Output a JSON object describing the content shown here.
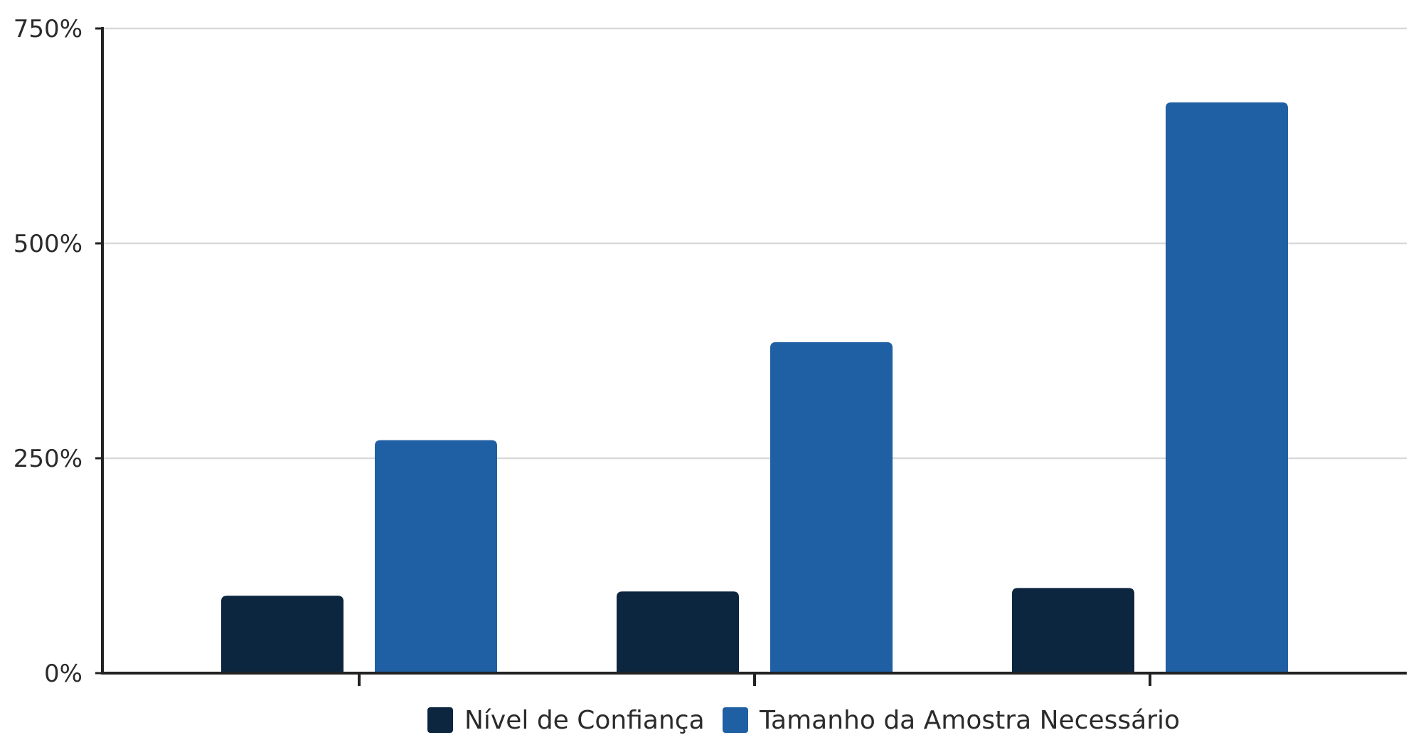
{
  "chart_data": {
    "type": "bar",
    "title": "",
    "xlabel": "",
    "ylabel": "",
    "categories": [
      "",
      "",
      ""
    ],
    "series": [
      {
        "name": "Nível de Confiança",
        "color": "#0d2640",
        "values": [
          90,
          95,
          99
        ]
      },
      {
        "name": "Tamanho da Amostra Necessário",
        "color": "#1f5fa3",
        "values": [
          271,
          385,
          664
        ]
      }
    ],
    "ylim": [
      0,
      750
    ],
    "y_ticks": [
      0,
      250,
      500,
      750
    ],
    "y_tick_labels": [
      "0%",
      "250%",
      "500%",
      "750%"
    ],
    "grid": true,
    "grid_color": "#d9d9d9",
    "axis_color": "#222222",
    "legend_position": "bottom-center"
  }
}
